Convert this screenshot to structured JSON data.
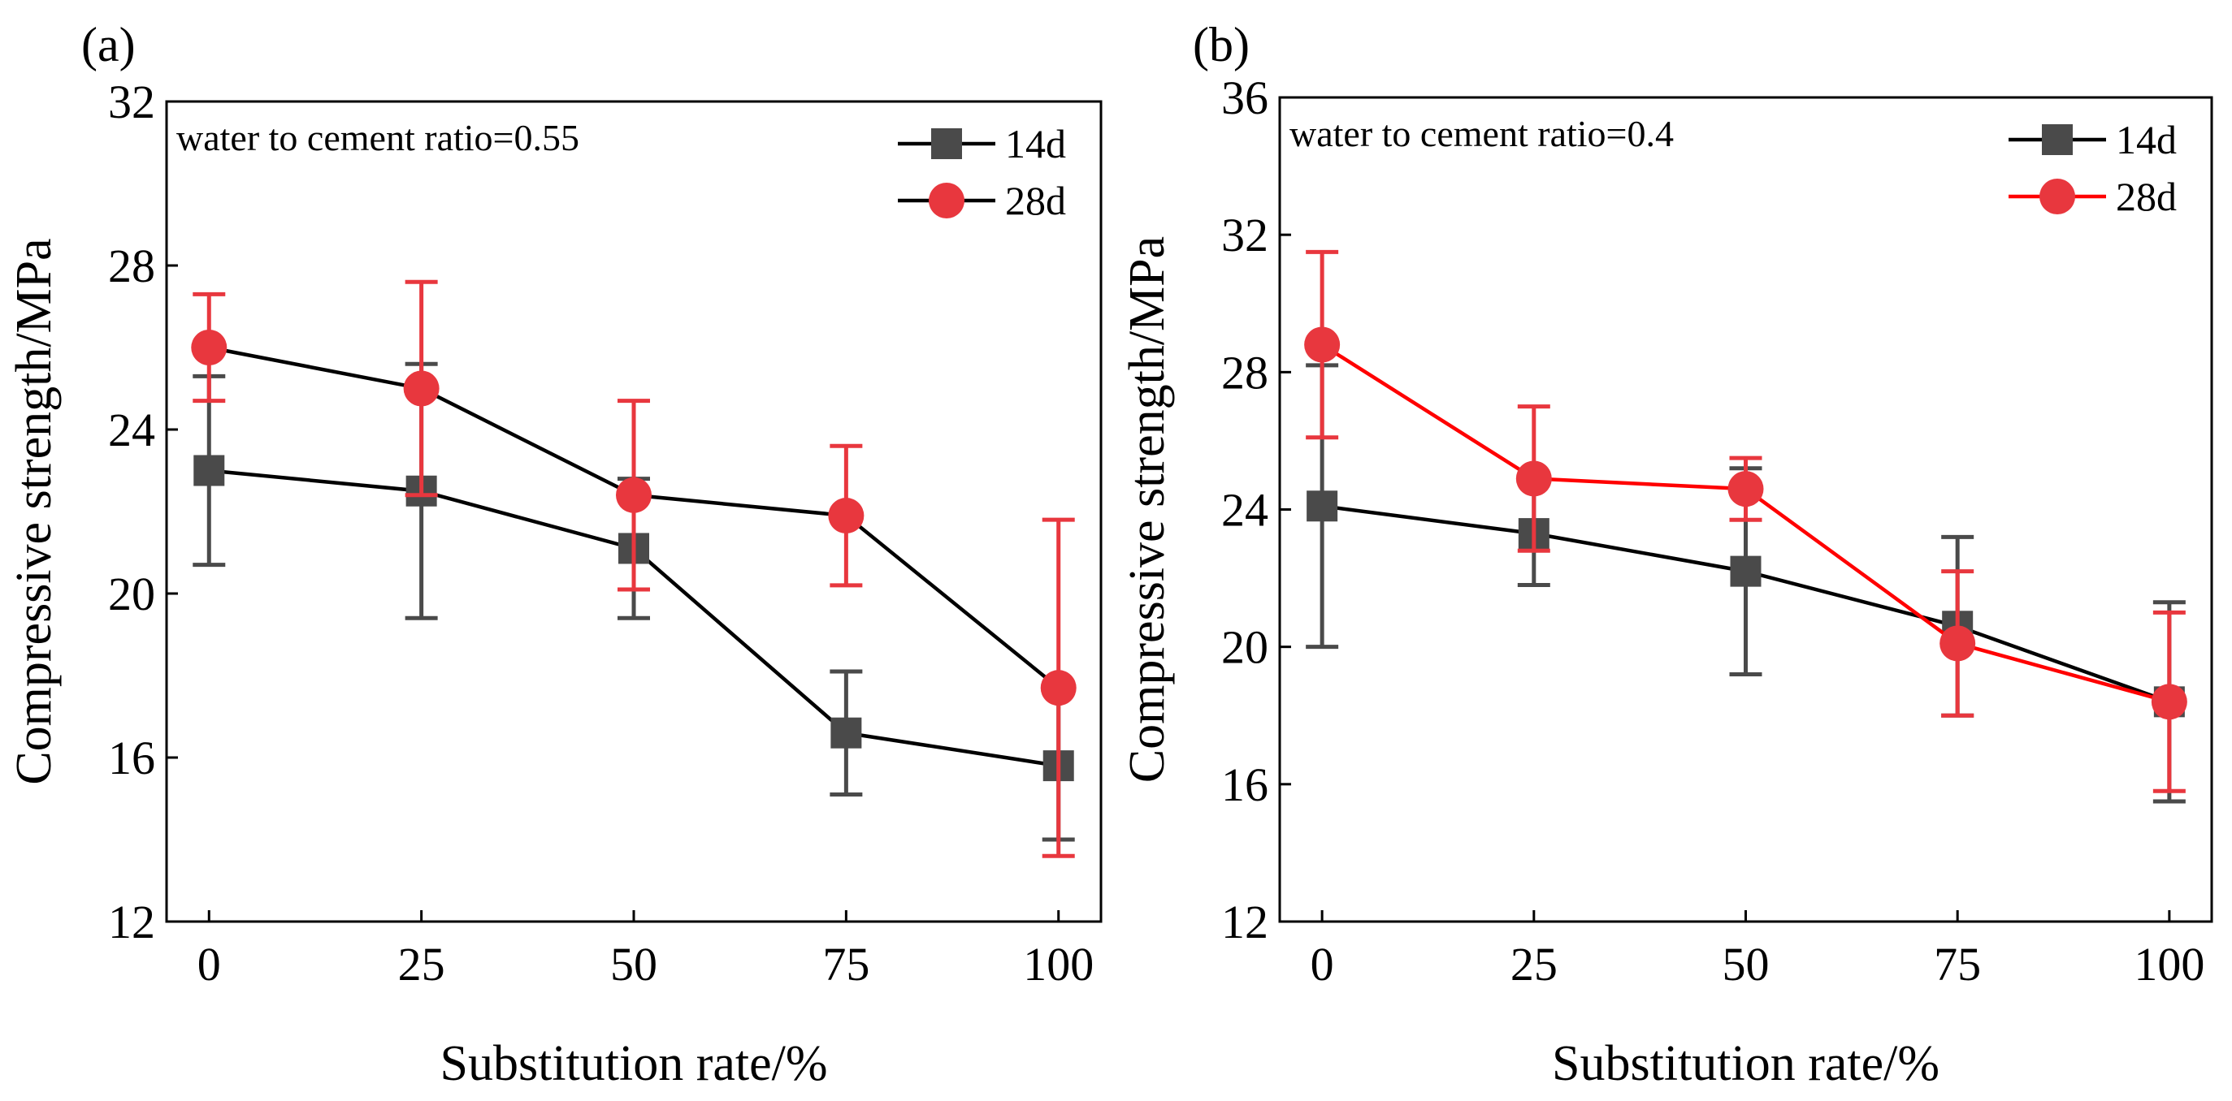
{
  "chart_data": [
    {
      "type": "line",
      "panel_label": "(a)",
      "annotation": "water to cement ratio=0.55",
      "xlabel": "Substitution rate/%",
      "ylabel": "Compressive strength/MPa",
      "x": [
        0,
        25,
        50,
        75,
        100
      ],
      "xlim": [
        -5,
        105
      ],
      "ylim": [
        12,
        32
      ],
      "xticks": [
        0,
        25,
        50,
        75,
        100
      ],
      "yticks": [
        12,
        16,
        20,
        24,
        28,
        32
      ],
      "legend_position": "top-right",
      "series": [
        {
          "name": "14d",
          "marker": "square",
          "color": "#4a4a4a",
          "line_color": "#000000",
          "values": [
            23.0,
            22.5,
            21.1,
            16.6,
            15.8
          ],
          "error": [
            2.3,
            3.1,
            1.7,
            1.5,
            1.8
          ]
        },
        {
          "name": "28d",
          "marker": "circle",
          "color": "#e8373e",
          "line_color": "#000000",
          "values": [
            26.0,
            25.0,
            22.4,
            21.9,
            17.7
          ],
          "error": [
            1.3,
            2.6,
            2.3,
            1.7,
            4.1
          ]
        }
      ]
    },
    {
      "type": "line",
      "panel_label": "(b)",
      "annotation": "water to cement ratio=0.4",
      "xlabel": "Substitution rate/%",
      "ylabel": "Compressive strength/MPa",
      "x": [
        0,
        25,
        50,
        75,
        100
      ],
      "xlim": [
        -5,
        105
      ],
      "ylim": [
        12,
        36
      ],
      "xticks": [
        0,
        25,
        50,
        75,
        100
      ],
      "yticks": [
        12,
        16,
        20,
        24,
        28,
        32,
        36
      ],
      "legend_position": "top-right",
      "series": [
        {
          "name": "14d",
          "marker": "square",
          "color": "#4a4a4a",
          "line_color": "#000000",
          "values": [
            24.1,
            23.3,
            22.2,
            20.6,
            18.4
          ],
          "error": [
            4.1,
            1.5,
            3.0,
            2.6,
            2.9
          ]
        },
        {
          "name": "28d",
          "marker": "circle",
          "color": "#e8373e",
          "line_color": "#ff0000",
          "values": [
            28.8,
            24.9,
            24.6,
            20.1,
            18.4
          ],
          "error": [
            2.7,
            2.1,
            0.9,
            2.1,
            2.6
          ]
        }
      ]
    }
  ]
}
